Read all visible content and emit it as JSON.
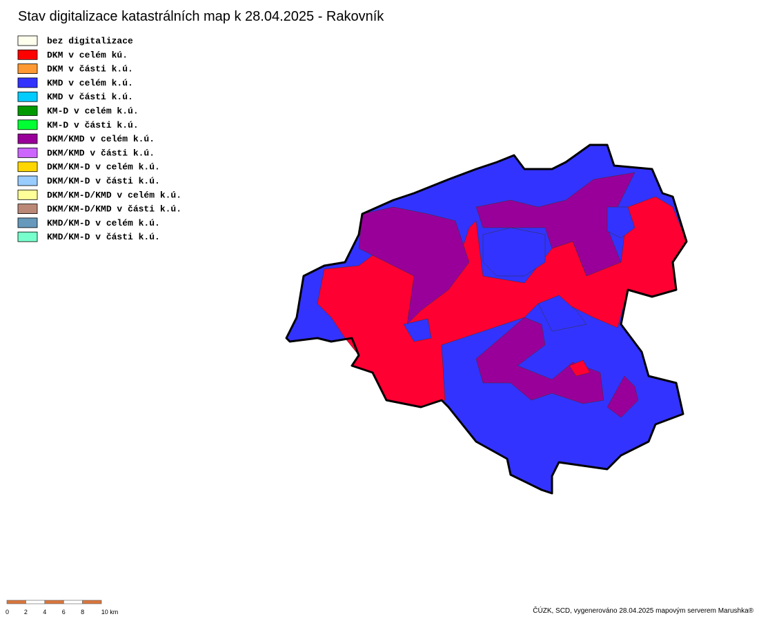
{
  "header": {
    "title": "Stav digitalizace katastrálních map k 28.04.2025 - Rakovník"
  },
  "legend": {
    "items": [
      {
        "label": "bez digitalizace",
        "color": "#ffffee"
      },
      {
        "label": "DKM v celém kú.",
        "color": "#ff0000"
      },
      {
        "label": "DKM v části k.ú.",
        "color": "#ff9933"
      },
      {
        "label": "KMD v celém k.ú.",
        "color": "#3333ff"
      },
      {
        "label": "KMD v části k.ú.",
        "color": "#00ccff"
      },
      {
        "label": "KM-D v celém k.ú.",
        "color": "#009900"
      },
      {
        "label": "KM-D v části k.ú.",
        "color": "#00ff33"
      },
      {
        "label": "DKM/KMD v celém k.ú.",
        "color": "#990099"
      },
      {
        "label": "DKM/KMD v části k.ú.",
        "color": "#cc66ff"
      },
      {
        "label": "DKM/KM-D v celém k.ú.",
        "color": "#ffd700"
      },
      {
        "label": "DKM/KM-D v části k.ú.",
        "color": "#99ccff"
      },
      {
        "label": "DKM/KM-D/KMD v celém k.ú.",
        "color": "#ffff99"
      },
      {
        "label": "DKM/KM-D/KMD v části k.ú.",
        "color": "#bb8877"
      },
      {
        "label": "KMD/KM-D v celém k.ú.",
        "color": "#6699bb"
      },
      {
        "label": "KMD/KM-D v části k.ú.",
        "color": "#77ffcc"
      }
    ]
  },
  "scale_bar": {
    "labels": [
      "0",
      "2",
      "4",
      "6",
      "8",
      "10 km"
    ]
  },
  "footer": {
    "credit": "ČÚZK, SCD, vygenerováno 28.04.2025 mapovým serverem Marushka®"
  }
}
